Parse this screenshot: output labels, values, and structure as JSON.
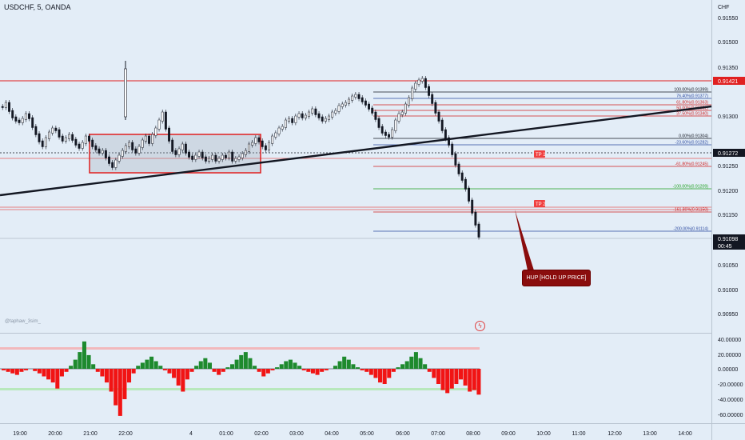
{
  "header": {
    "title": "USDCHF, 5, OANDA"
  },
  "currency": "CHF",
  "watermark": "@taphaw_3sim_",
  "callout": {
    "text": "HUP [HOLD UP PRICE]"
  },
  "price_axis": {
    "ticks": [
      "0.91550",
      "0.91500",
      "0.91350",
      "0.91300",
      "0.91250",
      "0.91200",
      "0.91150",
      "0.91050",
      "0.91000",
      "0.90950"
    ],
    "tags": [
      {
        "label": "0.91421",
        "color": "#e02020"
      },
      {
        "label": "0.91272",
        "color": "#131722"
      },
      {
        "label": "0.91098",
        "color": "#131722"
      },
      {
        "label": "00:45",
        "color": "#131722"
      }
    ]
  },
  "fib_levels": [
    {
      "label": "100.00%(0.91399)",
      "color": "#131722"
    },
    {
      "label": "76.40%(0.91377)",
      "color": "#2c4aa0"
    },
    {
      "label": "61.80%(0.91363)",
      "color": "#d02020"
    },
    {
      "label": "50.00%(0.91352)",
      "color": "#d02020"
    },
    {
      "label": "37.50%(0.91340)",
      "color": "#d02020"
    },
    {
      "label": "0.00%(0.91304)",
      "color": "#131722"
    },
    {
      "label": "-23.60%(0.91282)",
      "color": "#2c4aa0"
    },
    {
      "label": "-61.80%(0.91245)",
      "color": "#d02020"
    },
    {
      "label": "-100.00%(0.91209)",
      "color": "#1ea01e"
    },
    {
      "label": "-161.80%(0.91150)",
      "color": "#d02020"
    },
    {
      "label": "-200.00%(0.91114)",
      "color": "#2c4aa0"
    }
  ],
  "tp_tags": [
    "TP 1",
    "TP 2"
  ],
  "time_axis": [
    "19:00",
    "20:00",
    "21:00",
    "22:00",
    "4",
    "01:00",
    "02:00",
    "03:00",
    "04:00",
    "05:00",
    "06:00",
    "07:00",
    "08:00",
    "09:00",
    "10:00",
    "11:00",
    "12:00",
    "13:00",
    "14:00"
  ],
  "osc_axis": [
    "40.00000",
    "20.00000",
    "0.00000",
    "-20.00000",
    "-40.00000",
    "-60.00000"
  ],
  "colors": {
    "bull": "#1e8a2e",
    "bear": "#f11414",
    "bg": "#e3edf7"
  }
}
